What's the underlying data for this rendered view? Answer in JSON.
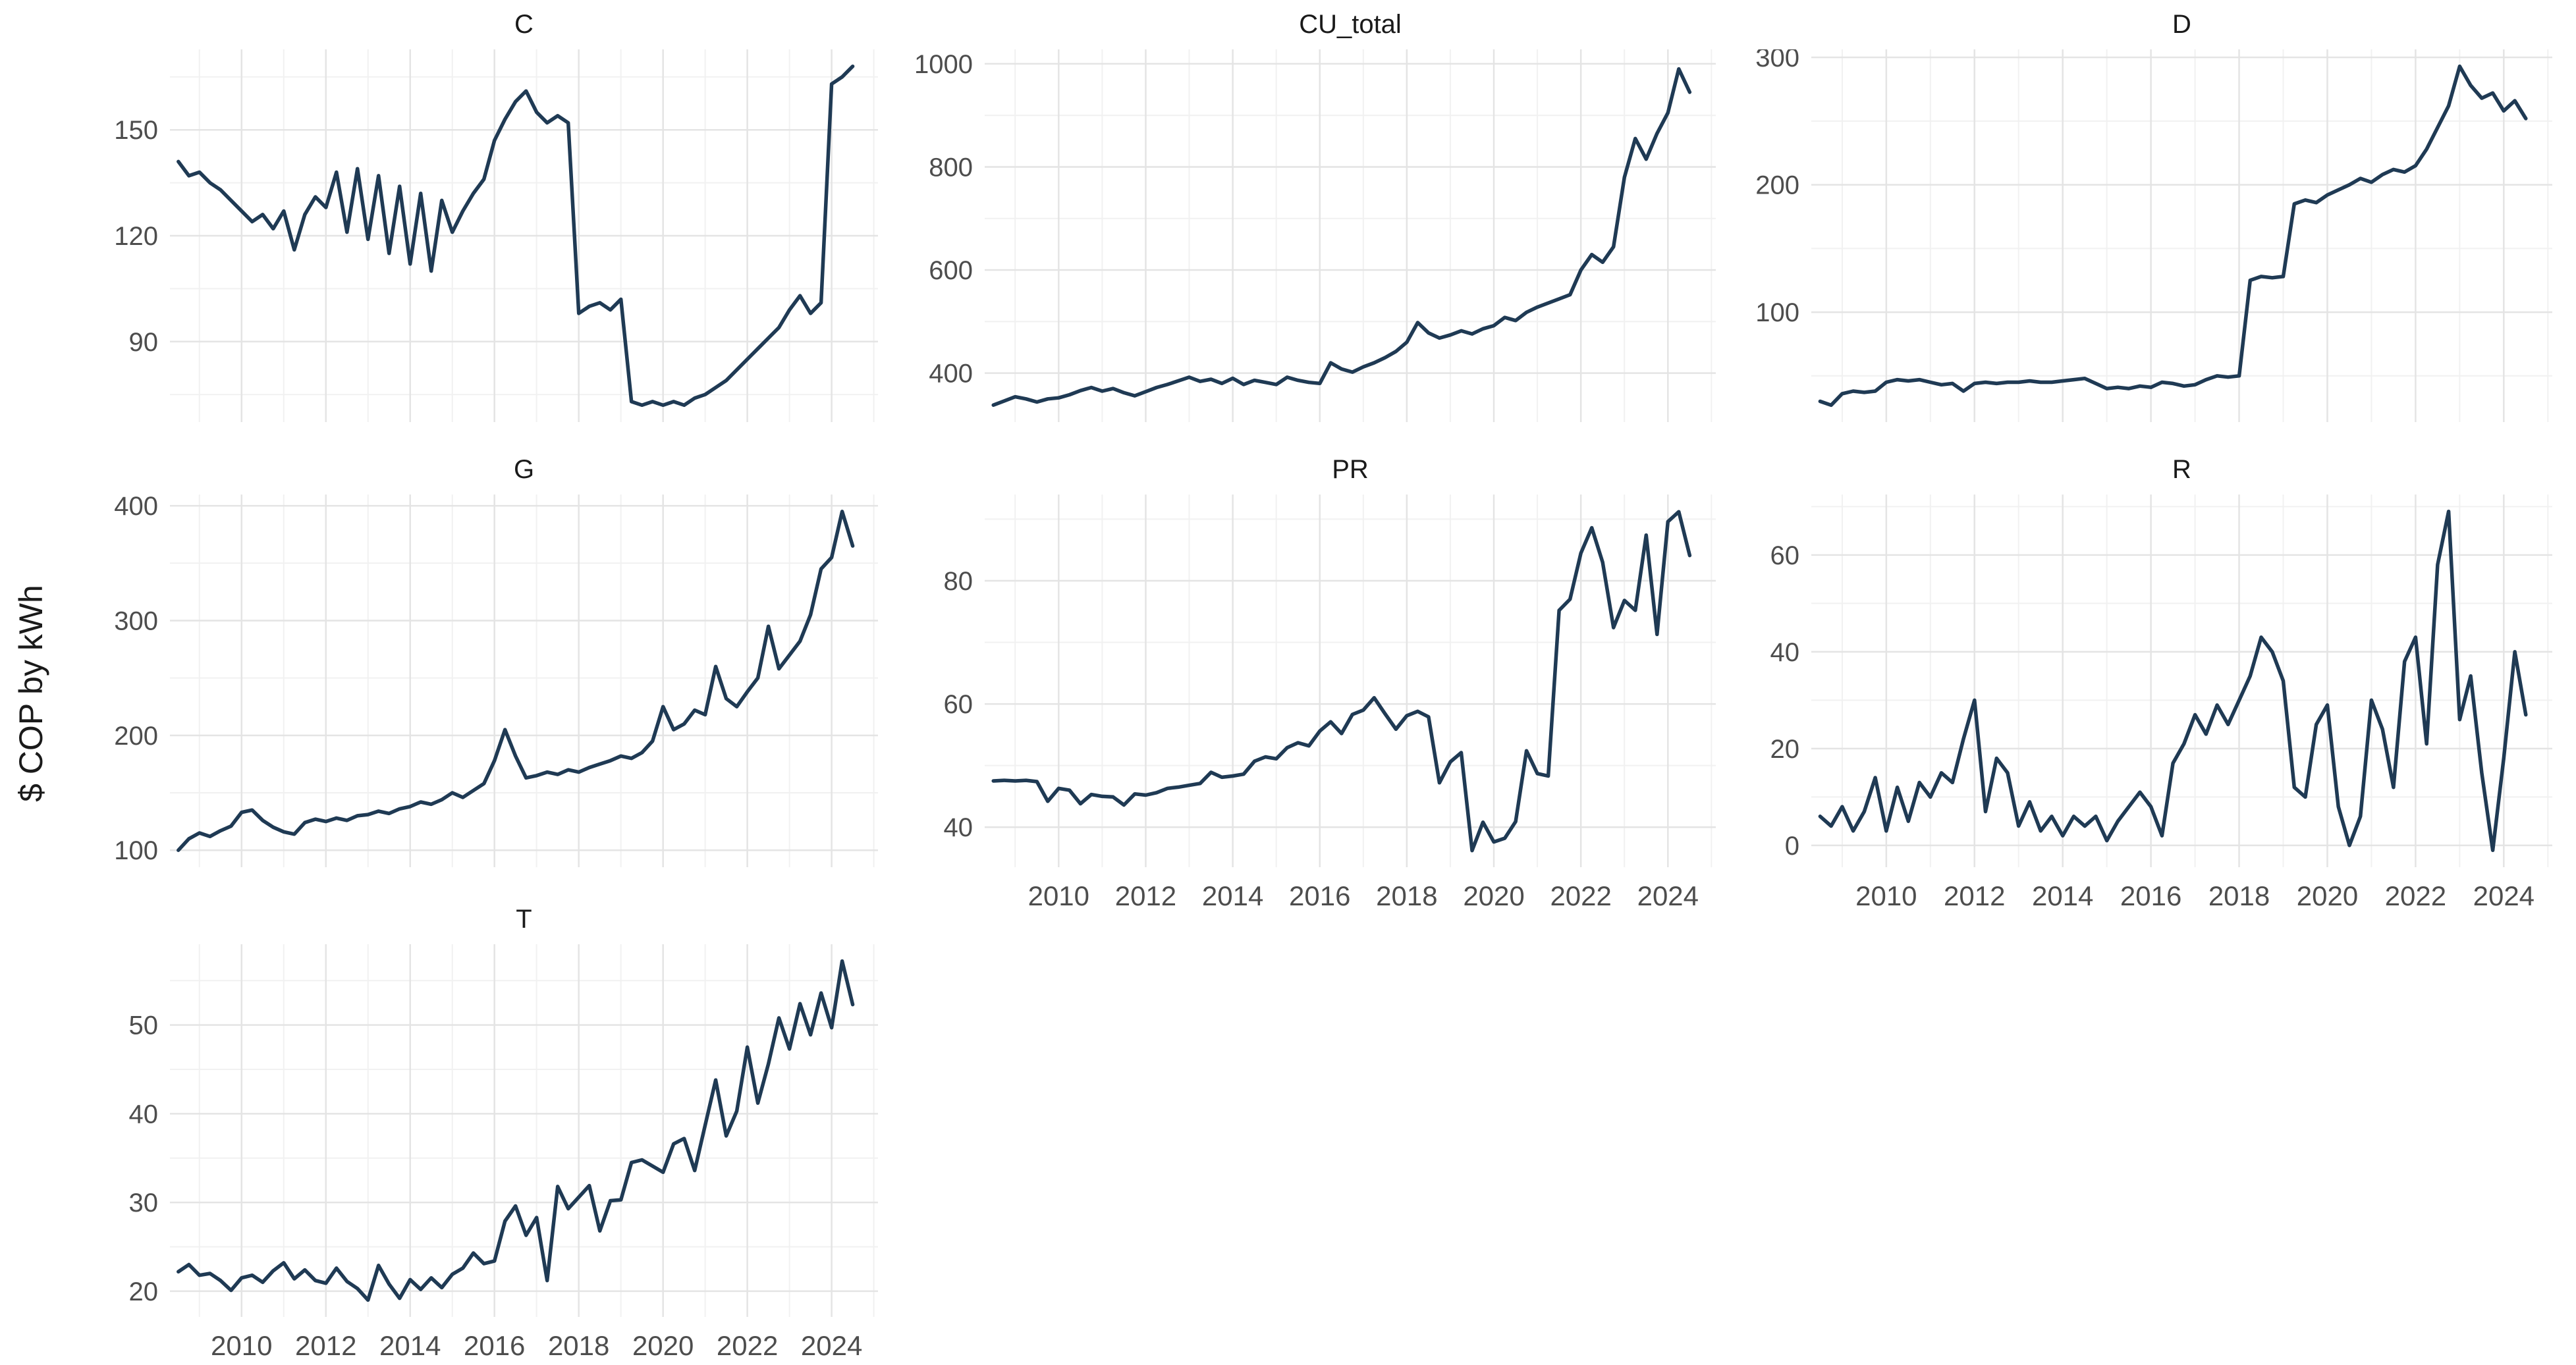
{
  "figure": {
    "y_axis_label": "$ COP by kWh",
    "background_color": "#ffffff",
    "line_color": "#1f3a54",
    "grid_major_color": "#e4e4e4",
    "grid_minor_color": "#f1f1f1",
    "tick_text_color": "#4d4d4d",
    "title_text_color": "#1a1a1a"
  },
  "axes": {
    "xlim": [
      2008.3,
      2025.1
    ],
    "x_major": [
      2010,
      2012,
      2014,
      2016,
      2018,
      2020,
      2022,
      2024
    ],
    "x_minor": [
      2009,
      2011,
      2013,
      2015,
      2017,
      2019,
      2021,
      2023,
      2025
    ],
    "x_tick_labels": [
      "2010",
      "2012",
      "2014",
      "2016",
      "2018",
      "2020",
      "2022",
      "2024"
    ],
    "x_start": 2008.5,
    "x_step": 0.25
  },
  "chart_data": [
    {
      "type": "line",
      "title": "C",
      "ylim": [
        67.2,
        172.8
      ],
      "y_ticks": [
        90,
        120,
        150
      ],
      "y_tick_labels": [
        "90",
        "120",
        "150"
      ],
      "y_minor": [
        75,
        105,
        135,
        165
      ],
      "show_x_labels": false,
      "values": [
        141,
        137,
        138,
        135,
        133,
        130,
        127,
        124,
        126,
        122,
        127,
        116,
        126,
        131,
        128,
        138,
        121,
        139,
        119,
        137,
        115,
        134,
        112,
        132,
        110,
        130,
        121,
        127,
        132,
        136,
        147,
        153,
        158,
        161,
        155,
        152,
        154,
        152,
        98,
        100,
        101,
        99,
        102,
        73,
        72,
        73,
        72,
        73,
        72,
        74,
        75,
        77,
        79,
        82,
        85,
        88,
        91,
        94,
        99,
        103,
        98,
        101,
        163,
        165,
        168
      ]
    },
    {
      "type": "line",
      "title": "CU_total",
      "ylim": [
        305,
        1028
      ],
      "y_ticks": [
        400,
        600,
        800,
        1000
      ],
      "y_tick_labels": [
        "400",
        "600",
        "800",
        "1000"
      ],
      "y_minor": [
        500,
        700,
        900
      ],
      "show_x_labels": false,
      "values": [
        338,
        346,
        354,
        350,
        344,
        350,
        352,
        358,
        366,
        372,
        365,
        370,
        362,
        356,
        364,
        372,
        378,
        385,
        392,
        384,
        388,
        380,
        390,
        378,
        386,
        382,
        378,
        392,
        386,
        382,
        380,
        420,
        408,
        402,
        412,
        420,
        430,
        442,
        460,
        498,
        478,
        468,
        474,
        482,
        476,
        486,
        492,
        508,
        502,
        518,
        528,
        536,
        544,
        552,
        600,
        630,
        615,
        645,
        780,
        855,
        815,
        865,
        905,
        990,
        945
      ]
    },
    {
      "type": "line",
      "title": "D",
      "ylim": [
        13.7,
        306.3
      ],
      "y_ticks": [
        100,
        200,
        300
      ],
      "y_tick_labels": [
        "100",
        "200",
        "300"
      ],
      "y_minor": [
        50,
        150,
        250
      ],
      "show_x_labels": false,
      "values": [
        30,
        27,
        36,
        38,
        37,
        38,
        45,
        47,
        46,
        47,
        45,
        43,
        44,
        38,
        44,
        45,
        44,
        45,
        45,
        46,
        45,
        45,
        46,
        47,
        48,
        44,
        40,
        41,
        40,
        42,
        41,
        45,
        44,
        42,
        43,
        47,
        50,
        49,
        50,
        125,
        128,
        127,
        128,
        185,
        188,
        186,
        192,
        196,
        200,
        205,
        202,
        208,
        212,
        210,
        215,
        228,
        245,
        262,
        293,
        278,
        268,
        272,
        258,
        266,
        252
      ]
    },
    {
      "type": "line",
      "title": "G",
      "ylim": [
        85.2,
        409.8
      ],
      "y_ticks": [
        100,
        200,
        300,
        400
      ],
      "y_tick_labels": [
        "100",
        "200",
        "300",
        "400"
      ],
      "y_minor": [
        150,
        250,
        350
      ],
      "show_x_labels": false,
      "values": [
        100,
        110,
        115,
        112,
        117,
        121,
        133,
        135,
        126,
        120,
        116,
        114,
        124,
        127,
        125,
        128,
        126,
        130,
        131,
        134,
        132,
        136,
        138,
        142,
        140,
        144,
        150,
        146,
        152,
        158,
        178,
        205,
        182,
        163,
        165,
        168,
        166,
        170,
        168,
        172,
        175,
        178,
        182,
        180,
        185,
        195,
        225,
        205,
        210,
        222,
        218,
        260,
        232,
        225,
        238,
        250,
        295,
        258,
        270,
        282,
        305,
        345,
        355,
        395,
        365
      ]
    },
    {
      "type": "line",
      "title": "PR",
      "ylim": [
        33.5,
        94
      ],
      "y_ticks": [
        40,
        60,
        80
      ],
      "y_tick_labels": [
        "40",
        "60",
        "80"
      ],
      "y_minor": [
        50,
        70,
        90
      ],
      "show_x_labels": true,
      "values": [
        47.5,
        47.6,
        47.5,
        47.6,
        47.4,
        44.2,
        46.3,
        46.0,
        43.8,
        45.3,
        45.0,
        44.9,
        43.6,
        45.4,
        45.2,
        45.6,
        46.3,
        46.5,
        46.8,
        47.1,
        48.9,
        48.1,
        48.3,
        48.6,
        50.7,
        51.4,
        51.1,
        52.9,
        53.7,
        53.2,
        55.6,
        57.1,
        55.2,
        58.3,
        59.0,
        61.0,
        58.4,
        55.9,
        58.1,
        58.8,
        57.9,
        47.2,
        50.6,
        52.1,
        36.2,
        40.8,
        37.6,
        38.2,
        40.9,
        52.4,
        48.7,
        48.3,
        75.2,
        77.0,
        84.5,
        88.6,
        83.0,
        72.4,
        76.8,
        75.2,
        87.4,
        71.3,
        89.6,
        91.2,
        84.1
      ]
    },
    {
      "type": "line",
      "title": "R",
      "ylim": [
        -4.5,
        72.5
      ],
      "y_ticks": [
        0,
        20,
        40,
        60
      ],
      "y_tick_labels": [
        "0",
        "20",
        "40",
        "60"
      ],
      "y_minor": [
        10,
        30,
        50,
        70
      ],
      "show_x_labels": true,
      "values": [
        6,
        4,
        8,
        3,
        7,
        14,
        3,
        12,
        5,
        13,
        10,
        15,
        13,
        22,
        30,
        7,
        18,
        15,
        4,
        9,
        3,
        6,
        2,
        6,
        4,
        6,
        1,
        5,
        8,
        11,
        8,
        2,
        17,
        21,
        27,
        23,
        29,
        25,
        30,
        35,
        43,
        40,
        34,
        12,
        10,
        25,
        29,
        8,
        0,
        6,
        30,
        24,
        12,
        38,
        43,
        21,
        58,
        69,
        26,
        35,
        15,
        -1,
        18,
        40,
        27
      ]
    },
    {
      "type": "line",
      "title": "T",
      "ylim": [
        17.1,
        59.1
      ],
      "y_ticks": [
        20,
        30,
        40,
        50
      ],
      "y_tick_labels": [
        "20",
        "30",
        "40",
        "50"
      ],
      "y_minor": [
        25,
        35,
        45,
        55
      ],
      "show_x_labels": true,
      "values": [
        22.2,
        23.0,
        21.8,
        22.0,
        21.2,
        20.1,
        21.5,
        21.8,
        21.0,
        22.3,
        23.2,
        21.4,
        22.4,
        21.2,
        20.9,
        22.6,
        21.1,
        20.3,
        19.0,
        22.9,
        20.8,
        19.2,
        21.3,
        20.2,
        21.5,
        20.4,
        21.9,
        22.6,
        24.3,
        23.1,
        23.4,
        27.9,
        29.6,
        26.3,
        28.3,
        21.2,
        31.8,
        29.3,
        30.6,
        31.9,
        26.8,
        30.2,
        30.3,
        34.5,
        34.8,
        34.1,
        33.4,
        36.6,
        37.2,
        33.6,
        38.7,
        43.8,
        37.5,
        40.3,
        47.5,
        41.2,
        45.6,
        50.8,
        47.3,
        52.4,
        48.9,
        53.6,
        49.7,
        57.2,
        52.3
      ]
    }
  ]
}
